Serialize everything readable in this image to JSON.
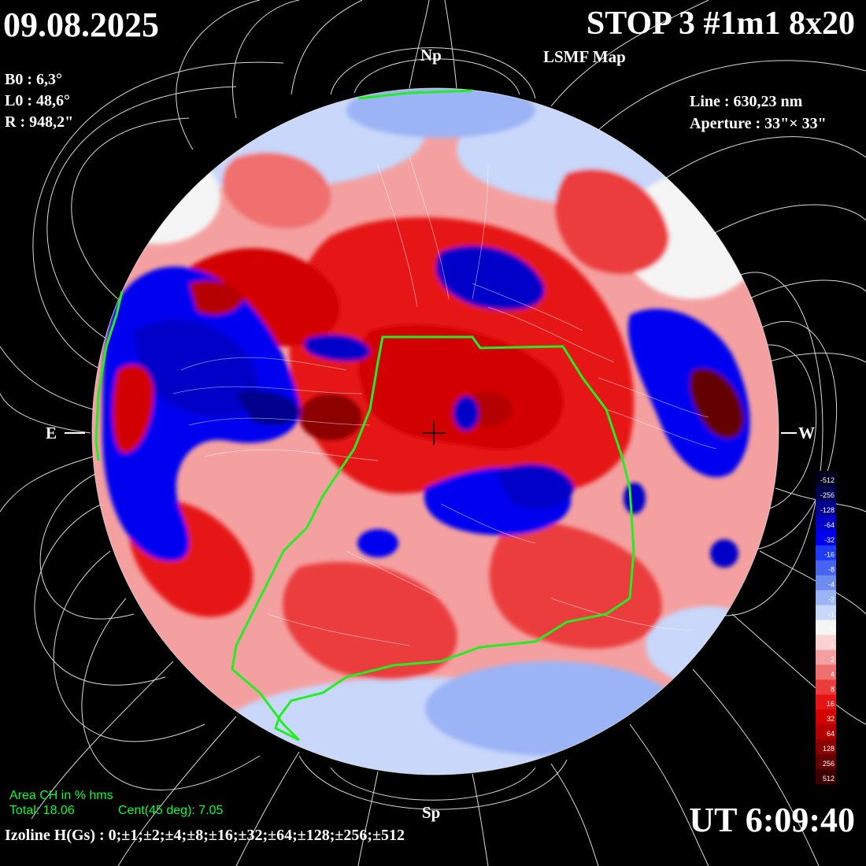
{
  "header": {
    "date": "09.08.2025",
    "title": "STOP 3 #1m1 8x20",
    "subtitle": "LSMF  Map"
  },
  "params_left": [
    {
      "label": "B0 : 6,3°"
    },
    {
      "label": "L0 : 48,6°"
    },
    {
      "label": "R  : 948,2\""
    }
  ],
  "params_right": [
    {
      "label": "Line :  630,23 nm"
    },
    {
      "label": "Aperture : 33\"× 33\""
    }
  ],
  "compass": {
    "north": "Np",
    "south": "Sp",
    "east": "E",
    "west": "W"
  },
  "colorbar": {
    "ticks": [
      "-512",
      "-256",
      "-128",
      "-64",
      "-32",
      "-16",
      "-8",
      "-4",
      "-2",
      "-1",
      "0",
      "1",
      "2",
      "4",
      "8",
      "16",
      "32",
      "64",
      "128",
      "256",
      "512"
    ],
    "colors": [
      "#00001e",
      "#000050",
      "#00008c",
      "#0000c8",
      "#0000f0",
      "#1e3cf5",
      "#4664f0",
      "#6e8cf0",
      "#9bb4f5",
      "#c8d7fa",
      "#f5f5f5",
      "#fad2d2",
      "#f5a0a0",
      "#f07070",
      "#eb3c3c",
      "#e61414",
      "#d20000",
      "#b40000",
      "#8c0000",
      "#640000",
      "#3c0000"
    ]
  },
  "coronal_hole": {
    "area_label": "Area CH in % hms",
    "total": "Total: 18.06",
    "central": "Cent(45 deg): 7.05"
  },
  "footer": {
    "ut": "UT 6:09:40",
    "isoline": "Izoline H(Gs) : 0;±1;±2;±4;±8;±16;±32;±64;±128;±256;±512"
  },
  "palette": {
    "positive_strong": "#d20000",
    "positive_weak": "#f07070",
    "negative_strong": "#0000c8",
    "negative_weak": "#9bb4f5",
    "neutral": "#f5f5f5",
    "coronal_hole_outline": "#22ee22",
    "field_lines": "#ffffff"
  }
}
